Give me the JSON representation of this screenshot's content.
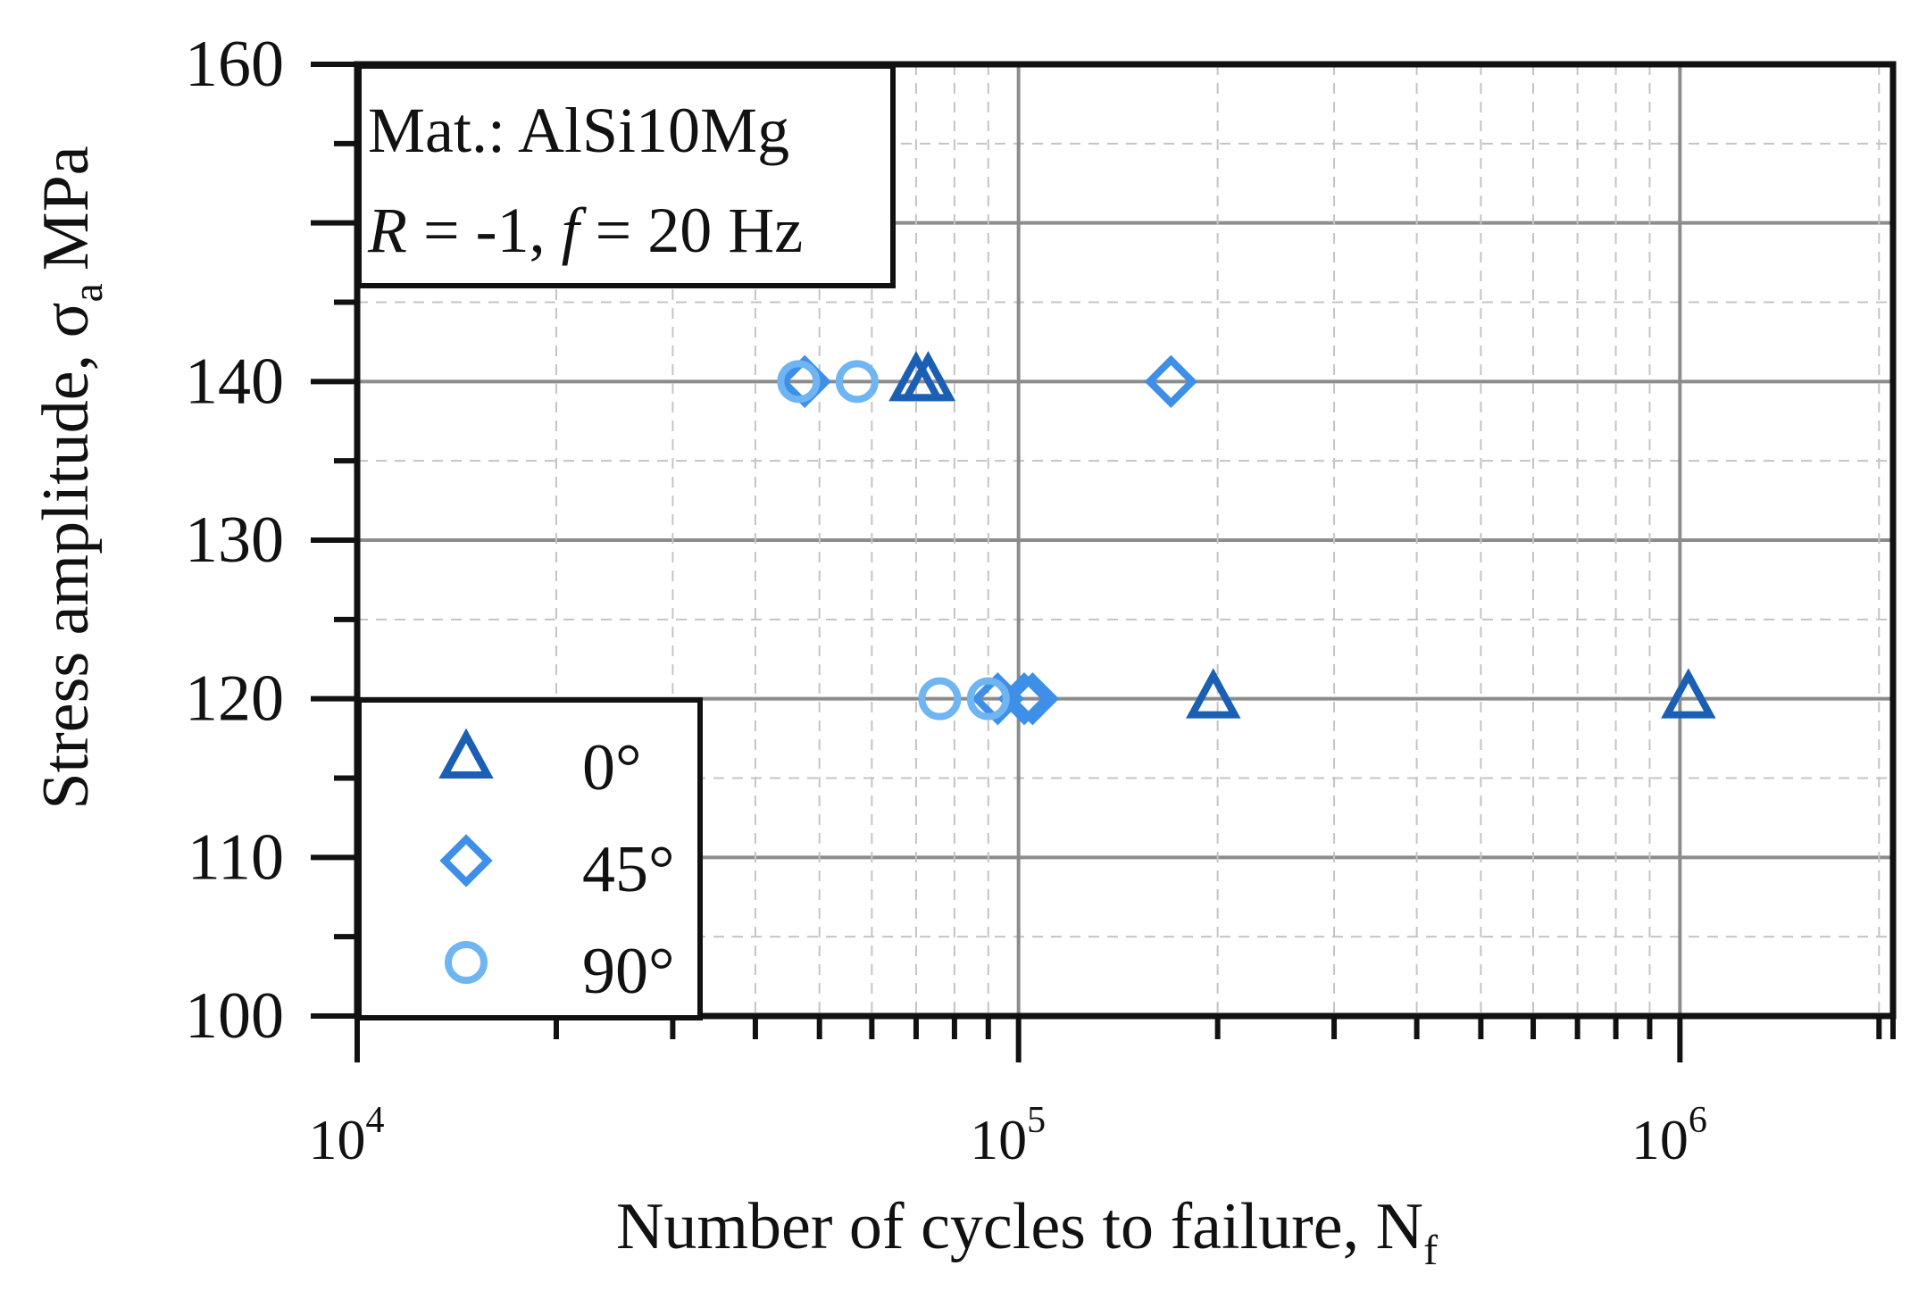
{
  "chart_data": {
    "type": "scatter",
    "title": "",
    "xlabel": "Number of cycles to failure, N",
    "xlabel_sub": "f",
    "ylabel": "Stress amplitude, σ",
    "ylabel_sub": "a",
    "ylabel_unit": "MPa",
    "x_scale": "log",
    "xlim": [
      10000,
      2100000
    ],
    "ylim": [
      100,
      160
    ],
    "y_ticks": [
      100,
      110,
      120,
      130,
      140,
      150,
      160
    ],
    "y_tick_labels": [
      "100",
      "110",
      "120",
      "130",
      "140",
      "",
      "160"
    ],
    "x_ticks": [
      {
        "value": 10000,
        "base": "10",
        "exp": "4"
      },
      {
        "value": 100000,
        "base": "10",
        "exp": "5"
      },
      {
        "value": 1000000,
        "base": "10",
        "exp": "6"
      }
    ],
    "grid": true,
    "legend_position": "bottom-left",
    "annotation": {
      "line1": "Mat.: AlSi10Mg",
      "line2_R": "R",
      "line2_mid": " = -1, ",
      "line2_f": "f",
      "line2_end": " = 20 Hz"
    },
    "series": [
      {
        "name": "0°",
        "marker": "triangle",
        "color": "#1a5fb4",
        "points": [
          {
            "x": 70000,
            "y": 140
          },
          {
            "x": 73000,
            "y": 140
          },
          {
            "x": 197000,
            "y": 120
          },
          {
            "x": 1030000,
            "y": 120
          }
        ]
      },
      {
        "name": "45°",
        "marker": "diamond",
        "color": "#3d8fe8",
        "points": [
          {
            "x": 47500,
            "y": 140
          },
          {
            "x": 170000,
            "y": 140
          },
          {
            "x": 93000,
            "y": 120
          },
          {
            "x": 102000,
            "y": 120
          },
          {
            "x": 105000,
            "y": 120
          }
        ]
      },
      {
        "name": "90°",
        "marker": "circle",
        "color": "#6fb5f2",
        "points": [
          {
            "x": 46500,
            "y": 140
          },
          {
            "x": 57000,
            "y": 140
          },
          {
            "x": 76000,
            "y": 120
          },
          {
            "x": 90000,
            "y": 120
          }
        ]
      }
    ]
  }
}
